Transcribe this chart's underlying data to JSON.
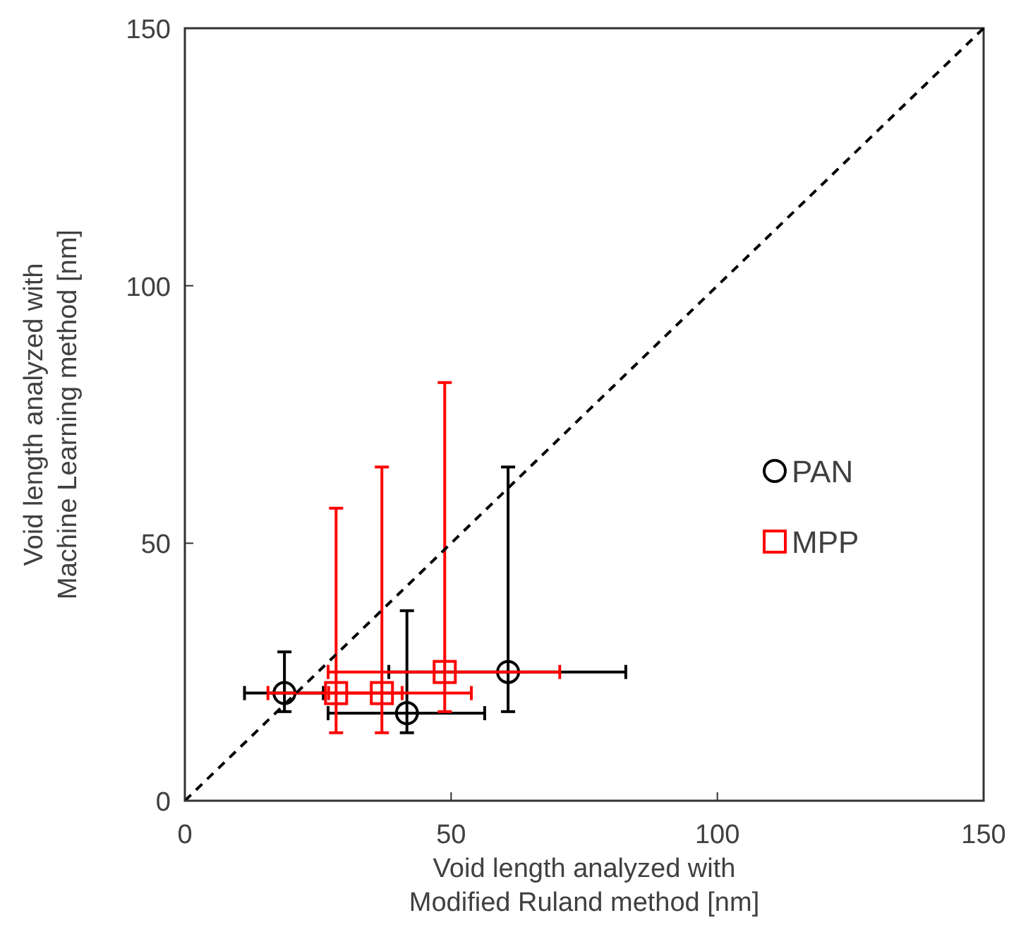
{
  "chart_data": {
    "type": "scatter",
    "xlabel": "Void length analyzed with\nModified Ruland method [nm]",
    "ylabel": "Void length analyzed with\nMachine Learning method [nm]",
    "xlim": [
      0,
      150
    ],
    "ylim": [
      0,
      150
    ],
    "xticks": [
      0,
      50,
      100,
      150
    ],
    "yticks": [
      0,
      50,
      100,
      150
    ],
    "grid": false,
    "legend": "right",
    "series": [
      {
        "name": "PAN",
        "color": "#000000",
        "marker": "circle",
        "x": [
          18.7,
          41.7,
          60.7
        ],
        "values": [
          20.9,
          17.0,
          25.0
        ],
        "errors": [
          [
            17.3,
            28.9
          ],
          [
            13.2,
            36.9
          ],
          [
            17.3,
            64.8
          ]
        ],
        "xerrors": [
          [
            11.2,
            26
          ],
          [
            26.9,
            56.3
          ],
          [
            38.3,
            82.8
          ]
        ]
      },
      {
        "name": "MPP",
        "color": "#ff0000",
        "marker": "square",
        "x": [
          28.4,
          37.0,
          48.8
        ],
        "values": [
          20.9,
          20.9,
          25.0
        ],
        "errors": [
          [
            13.2,
            56.8
          ],
          [
            13.2,
            64.8
          ],
          [
            17.3,
            81.2
          ]
        ],
        "xerrors": [
          [
            15.6,
            40.8
          ],
          [
            27,
            53.8
          ],
          [
            26.9,
            70.4
          ]
        ]
      },
      {
        "type": "line",
        "color": "#000000",
        "line_style": "dashed",
        "marker": "none",
        "x": [
          0,
          150
        ],
        "values": [
          0,
          150
        ]
      }
    ]
  }
}
